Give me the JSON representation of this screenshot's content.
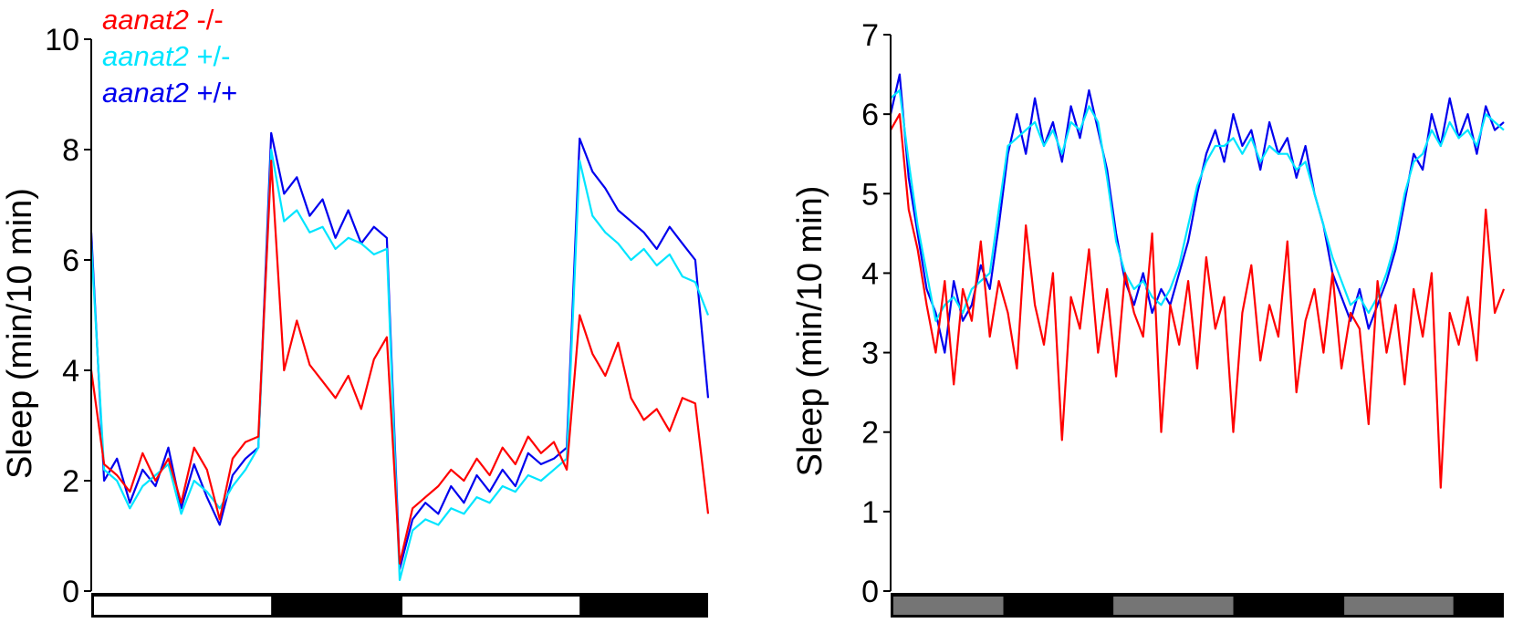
{
  "chart_data": [
    {
      "type": "line",
      "title": "",
      "xlabel": "",
      "ylabel": "Sleep (min/10 min)",
      "ylim": [
        0,
        10
      ],
      "yticks": [
        "0",
        "2",
        "4",
        "6",
        "8",
        "10"
      ],
      "xlim_hours": [
        0,
        48
      ],
      "grid": false,
      "legend": {
        "placement": "top-left",
        "entries": [
          {
            "gene": "aanat2",
            "genotype": "-/-",
            "color": "#ff0000"
          },
          {
            "gene": "aanat2",
            "genotype": "+/-",
            "color": "#00e5ff"
          },
          {
            "gene": "aanat2",
            "genotype": "+/+",
            "color": "#0000ee"
          }
        ]
      },
      "light_bar": [
        {
          "start": 0,
          "end": 14,
          "fill": "#ffffff"
        },
        {
          "start": 14,
          "end": 24,
          "fill": "#000000"
        },
        {
          "start": 24,
          "end": 38,
          "fill": "#ffffff"
        },
        {
          "start": 38,
          "end": 48,
          "fill": "#000000"
        }
      ],
      "x_step_hours": 1,
      "series": [
        {
          "name": "aanat2 +/+",
          "color": "#0000ee",
          "values": [
            6.5,
            2.0,
            2.4,
            1.6,
            2.2,
            1.9,
            2.6,
            1.5,
            2.3,
            1.7,
            1.2,
            2.1,
            2.4,
            2.6,
            8.3,
            7.2,
            7.5,
            6.8,
            7.1,
            6.4,
            6.9,
            6.3,
            6.6,
            6.4,
            0.4,
            1.3,
            1.6,
            1.4,
            1.9,
            1.6,
            2.1,
            1.8,
            2.2,
            1.9,
            2.5,
            2.3,
            2.4,
            2.6,
            8.2,
            7.6,
            7.3,
            6.9,
            6.7,
            6.5,
            6.2,
            6.6,
            6.3,
            6.0,
            3.5
          ]
        },
        {
          "name": "aanat2 +/-",
          "color": "#00e5ff",
          "values": [
            6.3,
            2.2,
            2.0,
            1.5,
            1.9,
            2.1,
            2.3,
            1.4,
            2.0,
            1.8,
            1.5,
            1.9,
            2.2,
            2.6,
            8.0,
            6.7,
            6.9,
            6.5,
            6.6,
            6.2,
            6.4,
            6.3,
            6.1,
            6.2,
            0.2,
            1.1,
            1.3,
            1.2,
            1.5,
            1.4,
            1.7,
            1.6,
            1.9,
            1.8,
            2.1,
            2.0,
            2.2,
            2.4,
            7.8,
            6.8,
            6.5,
            6.3,
            6.0,
            6.2,
            5.9,
            6.1,
            5.7,
            5.6,
            5.0
          ]
        },
        {
          "name": "aanat2 -/-",
          "color": "#ff0000",
          "values": [
            4.0,
            2.3,
            2.1,
            1.8,
            2.5,
            2.0,
            2.4,
            1.6,
            2.6,
            2.2,
            1.3,
            2.4,
            2.7,
            2.8,
            7.8,
            4.0,
            4.9,
            4.1,
            3.8,
            3.5,
            3.9,
            3.3,
            4.2,
            4.6,
            0.5,
            1.5,
            1.7,
            1.9,
            2.2,
            2.0,
            2.4,
            2.1,
            2.6,
            2.3,
            2.8,
            2.5,
            2.7,
            2.2,
            5.0,
            4.3,
            3.9,
            4.5,
            3.5,
            3.1,
            3.3,
            2.9,
            3.5,
            3.4,
            1.4
          ]
        }
      ]
    },
    {
      "type": "line",
      "title": "",
      "xlabel": "",
      "ylabel": "Sleep (min/10 min)",
      "ylim": [
        0,
        7
      ],
      "yticks": [
        "0",
        "1",
        "2",
        "3",
        "4",
        "5",
        "6",
        "7"
      ],
      "xlim_hours": [
        0,
        68
      ],
      "grid": false,
      "light_bar": [
        {
          "start": 0,
          "end": 12.5,
          "fill": "#757575"
        },
        {
          "start": 12.5,
          "end": 24.4,
          "fill": "#000000"
        },
        {
          "start": 24.4,
          "end": 38,
          "fill": "#757575"
        },
        {
          "start": 38,
          "end": 50,
          "fill": "#000000"
        },
        {
          "start": 50,
          "end": 62.4,
          "fill": "#757575"
        },
        {
          "start": 62.4,
          "end": 68,
          "fill": "#000000"
        }
      ],
      "x_step_hours": 1,
      "series": [
        {
          "name": "aanat2 +/+",
          "color": "#0000ee",
          "values": [
            6.0,
            6.5,
            5.2,
            4.5,
            3.8,
            3.5,
            3.0,
            3.9,
            3.4,
            3.6,
            4.1,
            3.8,
            4.6,
            5.5,
            6.0,
            5.5,
            6.2,
            5.6,
            5.9,
            5.4,
            6.1,
            5.7,
            6.3,
            5.8,
            5.3,
            4.5,
            3.9,
            3.6,
            4.0,
            3.5,
            3.8,
            3.6,
            4.0,
            4.4,
            5.0,
            5.5,
            5.8,
            5.4,
            6.0,
            5.6,
            5.8,
            5.3,
            5.9,
            5.5,
            5.7,
            5.2,
            5.6,
            5.0,
            4.6,
            4.0,
            3.7,
            3.4,
            3.8,
            3.3,
            3.6,
            3.9,
            4.3,
            4.9,
            5.5,
            5.3,
            6.0,
            5.6,
            6.2,
            5.7,
            6.0,
            5.5,
            6.1,
            5.8,
            5.9
          ]
        },
        {
          "name": "aanat2 +/-",
          "color": "#00e5ff",
          "values": [
            6.2,
            6.3,
            5.4,
            4.6,
            4.0,
            3.4,
            3.6,
            3.7,
            3.5,
            3.8,
            3.9,
            4.0,
            4.8,
            5.6,
            5.7,
            5.8,
            5.9,
            5.6,
            5.8,
            5.5,
            5.9,
            5.8,
            6.1,
            5.9,
            5.2,
            4.4,
            4.0,
            3.8,
            3.9,
            3.7,
            3.6,
            3.8,
            4.1,
            4.6,
            5.1,
            5.4,
            5.6,
            5.6,
            5.7,
            5.5,
            5.7,
            5.4,
            5.6,
            5.5,
            5.5,
            5.3,
            5.4,
            5.0,
            4.6,
            4.2,
            3.9,
            3.6,
            3.7,
            3.5,
            3.7,
            4.0,
            4.4,
            5.0,
            5.4,
            5.5,
            5.8,
            5.6,
            5.9,
            5.7,
            5.8,
            5.6,
            6.0,
            5.9,
            5.8
          ]
        },
        {
          "name": "aanat2 -/-",
          "color": "#ff0000",
          "values": [
            5.8,
            6.0,
            4.8,
            4.3,
            3.6,
            3.0,
            3.9,
            2.6,
            3.8,
            3.4,
            4.4,
            3.2,
            3.9,
            3.5,
            2.8,
            4.6,
            3.6,
            3.1,
            4.0,
            1.9,
            3.7,
            3.3,
            4.3,
            3.0,
            3.8,
            2.7,
            4.0,
            3.5,
            3.2,
            4.5,
            2.0,
            3.6,
            3.1,
            3.9,
            2.8,
            4.2,
            3.3,
            3.7,
            2.0,
            3.5,
            4.1,
            2.9,
            3.6,
            3.2,
            4.4,
            2.5,
            3.4,
            3.8,
            3.0,
            4.0,
            2.8,
            3.5,
            3.3,
            2.1,
            3.9,
            3.0,
            3.6,
            2.6,
            3.8,
            3.2,
            4.0,
            1.3,
            3.5,
            3.1,
            3.7,
            2.9,
            4.8,
            3.5,
            3.8
          ]
        }
      ]
    }
  ]
}
